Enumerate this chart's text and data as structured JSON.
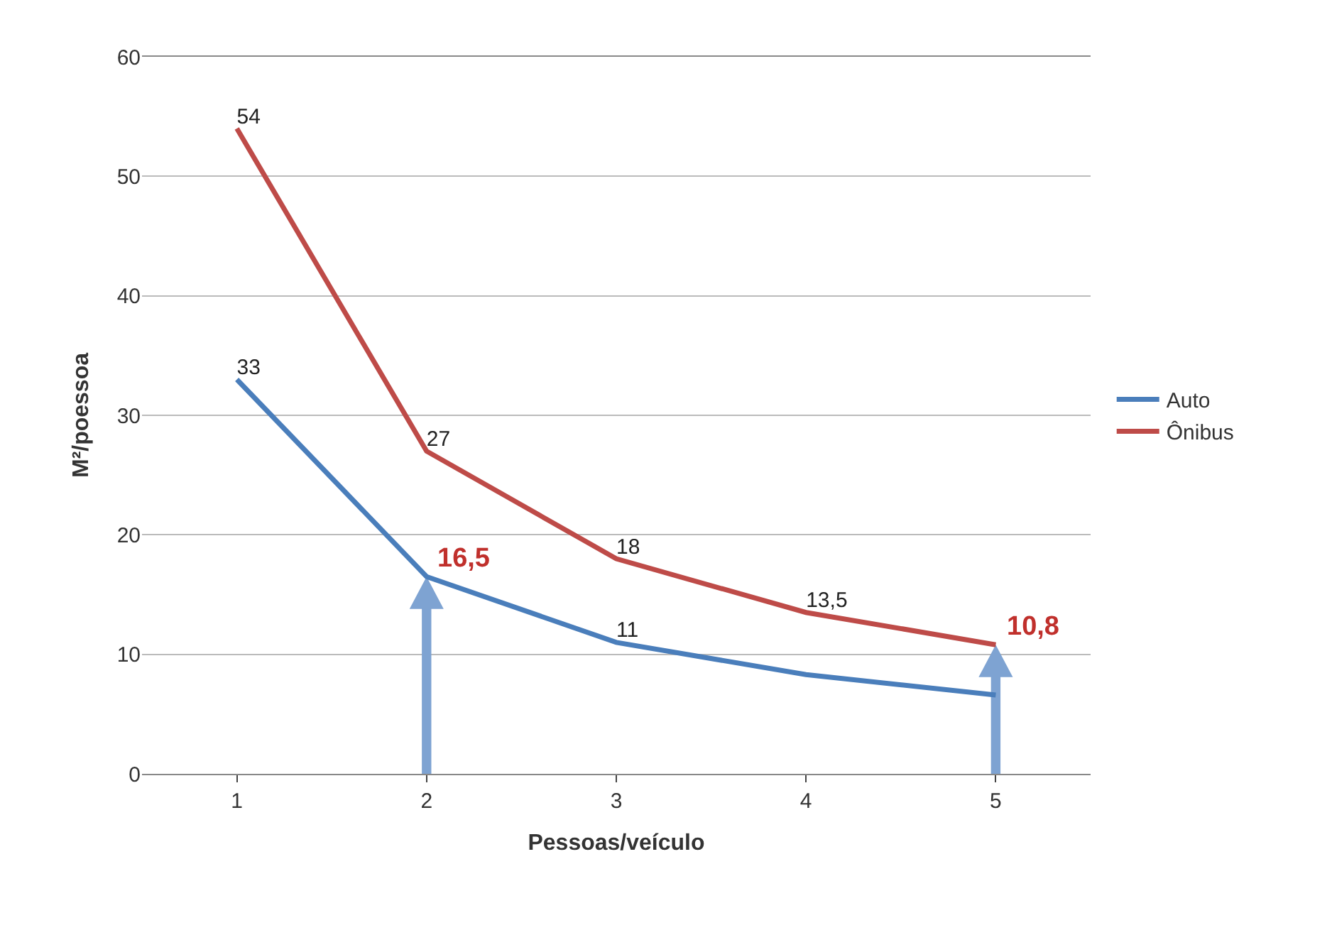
{
  "chart_data": {
    "type": "line",
    "xlabel": "Pessoas/veículo",
    "ylabel": "M²/poessoa",
    "categories": [
      "1",
      "2",
      "3",
      "4",
      "5"
    ],
    "series": [
      {
        "name": "Auto",
        "color": "#4a7ebb",
        "values": [
          33,
          16.5,
          11,
          8.3,
          6.6
        ],
        "value_labels": [
          "33",
          null,
          "11",
          null,
          null
        ]
      },
      {
        "name": "Ônibus",
        "color": "#be4b48",
        "values": [
          54,
          27,
          18,
          13.5,
          10.8
        ],
        "value_labels": [
          "54",
          "27",
          "18",
          "13,5",
          null
        ]
      }
    ],
    "annotations": [
      {
        "text": "16,5",
        "x": "2",
        "y": 16.5
      },
      {
        "text": "10,8",
        "x": "5",
        "y": 10.8
      }
    ],
    "ylim": [
      0,
      60
    ],
    "yticks": [
      0,
      10,
      20,
      30,
      40,
      50,
      60
    ],
    "grid": "y",
    "legend": "right",
    "marker": "none",
    "line_style": "solid"
  }
}
